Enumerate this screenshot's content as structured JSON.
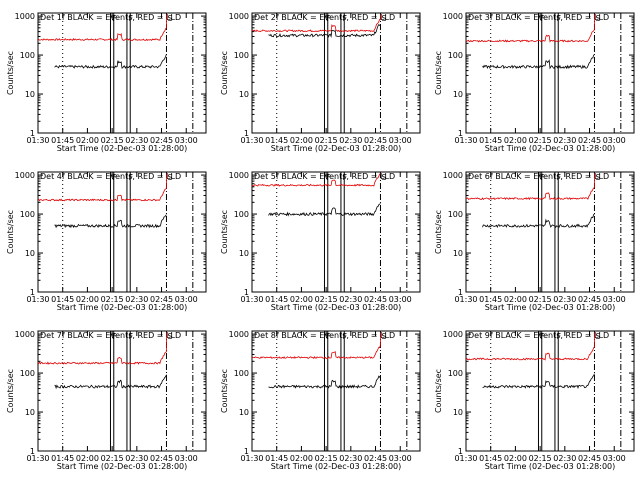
{
  "chart_data": [
    {
      "type": "line",
      "title": "Det 1f BLACK = Events, RED = LLD",
      "xlabel": "Start Time (02-Dec-03 01:28:00)",
      "ylabel": "Counts/sec",
      "black_level": 50,
      "red_level": 250
    },
    {
      "type": "line",
      "title": "Det 2f BLACK = Events, RED = LLD",
      "xlabel": "Start Time (02-Dec-03 01:28:00)",
      "ylabel": "Counts/sec",
      "black_level": 320,
      "red_level": 420
    },
    {
      "type": "line",
      "title": "Det 3f BLACK = Events, RED = LLD",
      "xlabel": "Start Time (02-Dec-03 01:28:00)",
      "ylabel": "Counts/sec",
      "black_level": 50,
      "red_level": 230
    },
    {
      "type": "line",
      "title": "Det 4f BLACK = Events, RED = LLD",
      "xlabel": "Start Time (02-Dec-03 01:28:00)",
      "ylabel": "Counts/sec",
      "black_level": 50,
      "red_level": 230
    },
    {
      "type": "line",
      "title": "Det 5f BLACK = Events, RED = LLD",
      "xlabel": "Start Time (02-Dec-03 01:28:00)",
      "ylabel": "Counts/sec",
      "black_level": 100,
      "red_level": 550
    },
    {
      "type": "line",
      "title": "Det 6f BLACK = Events, RED = LLD",
      "xlabel": "Start Time (02-Dec-03 01:28:00)",
      "ylabel": "Counts/sec",
      "black_level": 50,
      "red_level": 250
    },
    {
      "type": "line",
      "title": "Det 7f BLACK = Events, RED = LLD",
      "xlabel": "Start Time (02-Dec-03 01:28:00)",
      "ylabel": "Counts/sec",
      "black_level": 45,
      "red_level": 180
    },
    {
      "type": "line",
      "title": "Det 8f BLACK = Events, RED = LLD",
      "xlabel": "Start Time (02-Dec-03 01:28:00)",
      "ylabel": "Counts/sec",
      "black_level": 45,
      "red_level": 250
    },
    {
      "type": "line",
      "title": "Det 9f BLACK = Events, RED = LLD",
      "xlabel": "Start Time (02-Dec-03 01:28:00)",
      "ylabel": "Counts/sec",
      "black_level": 45,
      "red_level": 230
    }
  ],
  "shared": {
    "x_ticks": [
      "01:30",
      "01:45",
      "02:00",
      "02:15",
      "02:30",
      "02:45",
      "03:00"
    ],
    "x_tick_minutes": [
      0,
      15,
      30,
      45,
      60,
      75,
      90
    ],
    "x_range_minutes": [
      0,
      102
    ],
    "y_ticks": [
      "1",
      "10",
      "100",
      "1000"
    ],
    "y_tick_values": [
      1,
      10,
      100,
      1000
    ],
    "y_range": [
      1,
      1200
    ],
    "y_scale": "log",
    "dotted_line_minutes": [
      15
    ],
    "solid_marker_minutes": [
      44,
      46,
      54,
      56
    ],
    "marker_labels": [
      "F",
      "F"
    ],
    "dashdot_line_minutes": [
      78,
      94
    ],
    "s_marker_label": "S",
    "data_end_minute": 78,
    "colors": {
      "events": "#000000",
      "lld": "#e00000",
      "axes": "#000000"
    }
  }
}
